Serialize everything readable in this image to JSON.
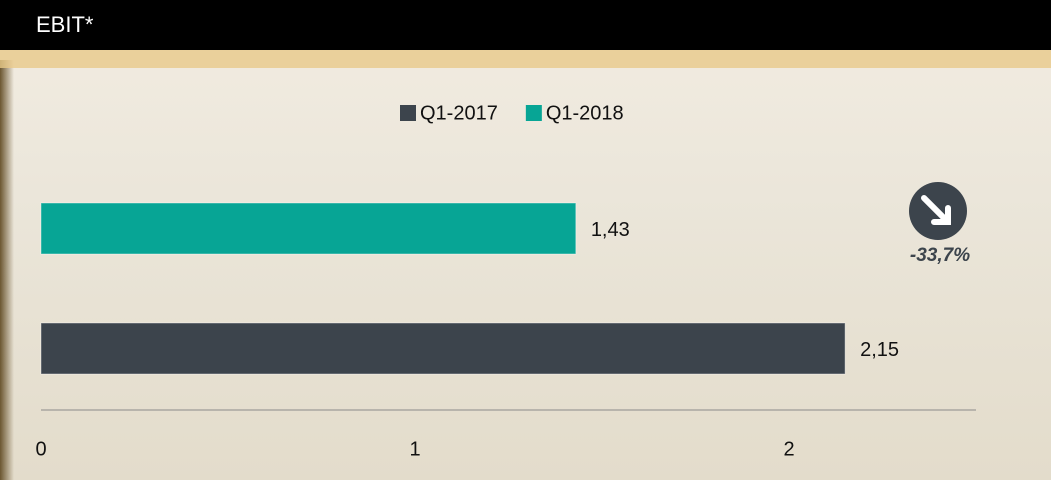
{
  "chart_data": {
    "type": "hbar",
    "title": "EBIT*",
    "categories": [
      null
    ],
    "series": [
      {
        "name": "Q1-2017",
        "color": "#3c444c",
        "values": [
          2.15
        ],
        "value_labels": [
          "2,15"
        ]
      },
      {
        "name": "Q1-2018",
        "color": "#07a595",
        "values": [
          1.43
        ],
        "value_labels": [
          "1,43"
        ]
      }
    ],
    "xlim": [
      0,
      2.5
    ],
    "xticks": [
      0,
      1,
      2
    ],
    "annotation": "-33,7%"
  }
}
